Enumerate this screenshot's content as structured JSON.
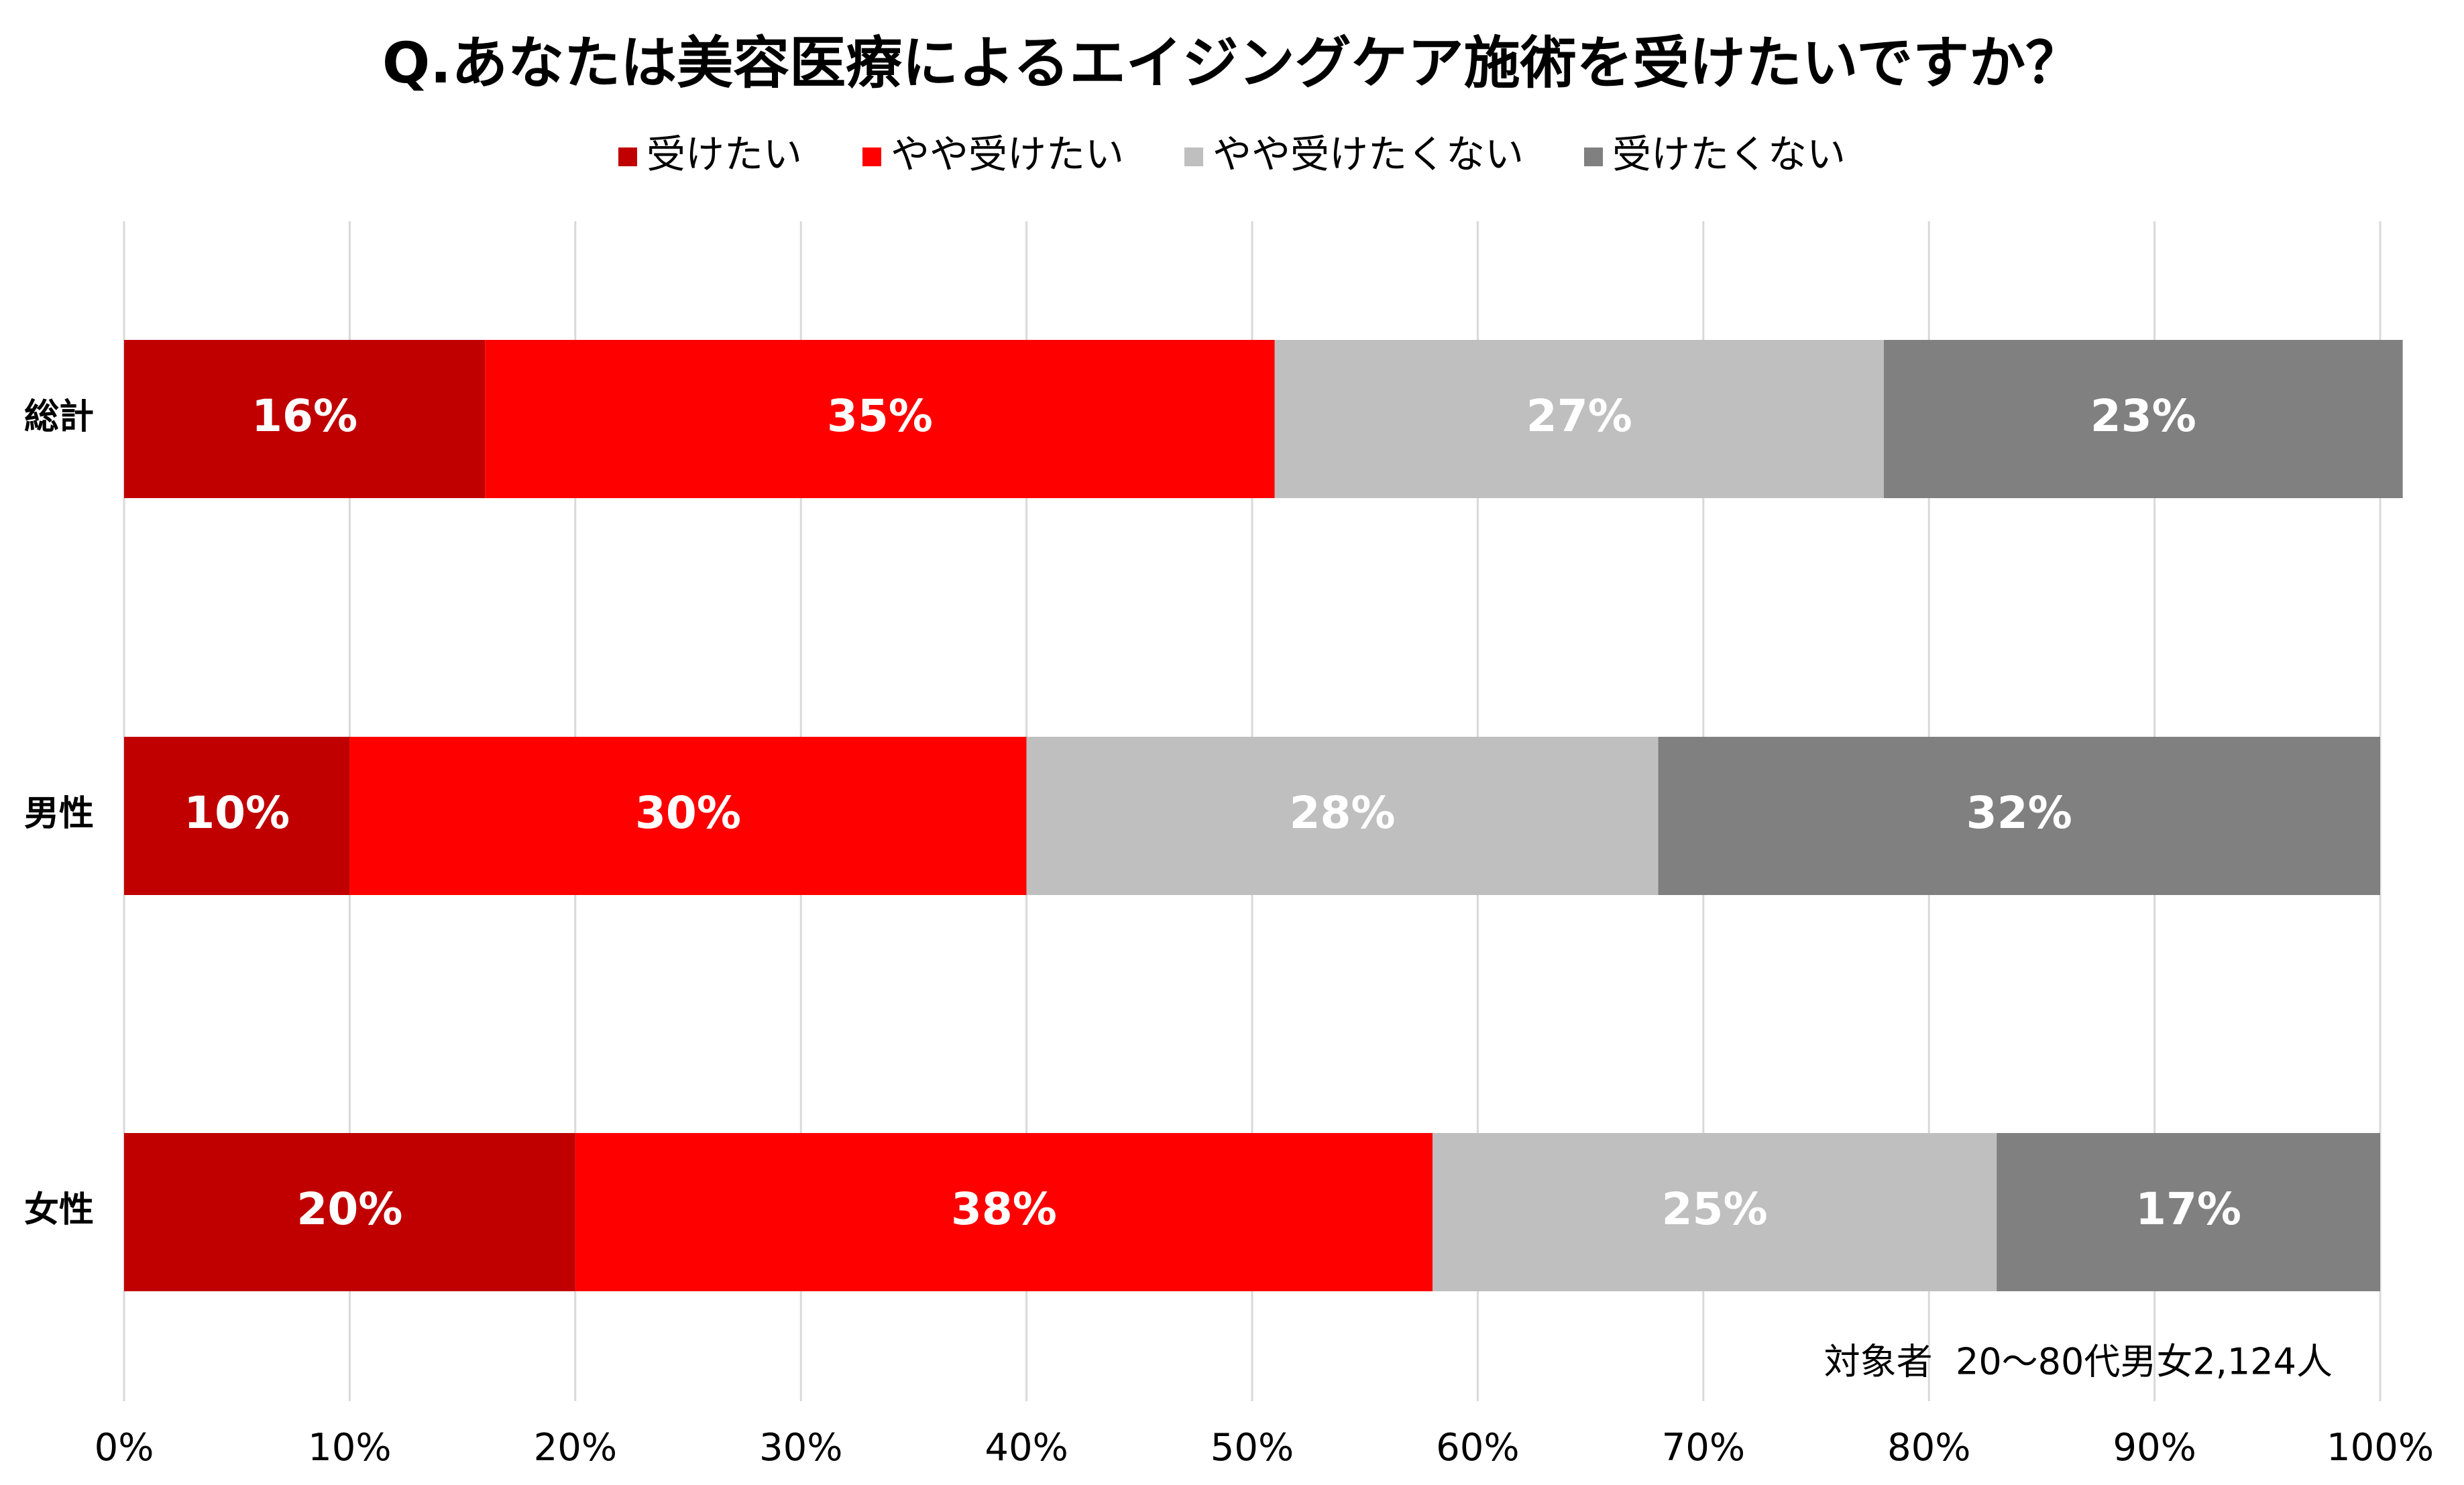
{
  "chart_data": {
    "type": "bar",
    "orientation": "horizontal",
    "stacked": "100%",
    "title": "Q.あなたは美容医療によるエイジングケア施術を受けたいですか？",
    "categories": [
      "総計",
      "男性",
      "女性"
    ],
    "series": [
      {
        "name": "受けたい",
        "values": [
          16,
          10,
          20
        ],
        "labels": [
          "16%",
          "10%",
          "20%"
        ],
        "color": "#c00000",
        "label_color": "#ffffff"
      },
      {
        "name": "やや受けたい",
        "values": [
          35,
          30,
          38
        ],
        "labels": [
          "35%",
          "30%",
          "38%"
        ],
        "color": "#ff0000",
        "label_color": "#ffffff"
      },
      {
        "name": "やや受けたくない",
        "values": [
          27,
          28,
          25
        ],
        "labels": [
          "27%",
          "28%",
          "25%"
        ],
        "color": "#bfbfbf",
        "label_color": "#ffffff"
      },
      {
        "name": "受けたくない",
        "values": [
          23,
          32,
          17
        ],
        "labels": [
          "23%",
          "32%",
          "17%"
        ],
        "color": "#808080",
        "label_color": "#ffffff"
      }
    ],
    "xlim": [
      0,
      100
    ],
    "x_ticks": [
      "0%",
      "10%",
      "20%",
      "30%",
      "40%",
      "50%",
      "60%",
      "70%",
      "80%",
      "90%",
      "100%"
    ],
    "grid": "vertical",
    "legend": "top-center",
    "note": "対象者  20～80代男女2,124人"
  }
}
